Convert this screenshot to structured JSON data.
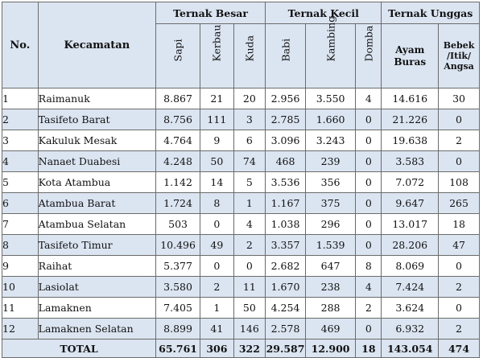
{
  "headers": {
    "no": "No.",
    "kecamatan": "Kecamatan",
    "ternak_besar": "Ternak Besar",
    "ternak_kecil": "Ternak Kecil",
    "ternak_unggas": "Ternak Unggas",
    "sapi": "Sapi",
    "kerbau": "Kerbau",
    "kuda": "Kuda",
    "babi": "Babi",
    "kambing": "Kambing",
    "domba": "Domba",
    "ayam_buras_1": "Ayam",
    "ayam_buras_2": "Buras",
    "bebek_1": "Bebek",
    "bebek_2": "/Itik/",
    "bebek_3": "Angsa"
  },
  "rows": [
    {
      "no": "1",
      "name": "Raimanuk",
      "sapi": "8.867",
      "kerbau": "21",
      "kuda": "20",
      "babi": "2.956",
      "kambing": "3.550",
      "domba": "4",
      "ayam": "14.616",
      "bebek": "30"
    },
    {
      "no": "2",
      "name": "Tasifeto Barat",
      "sapi": "8.756",
      "kerbau": "111",
      "kuda": "3",
      "babi": "2.785",
      "kambing": "1.660",
      "domba": "0",
      "ayam": "21.226",
      "bebek": "0"
    },
    {
      "no": "3",
      "name": "Kakuluk Mesak",
      "sapi": "4.764",
      "kerbau": "9",
      "kuda": "6",
      "babi": "3.096",
      "kambing": "3.243",
      "domba": "0",
      "ayam": "19.638",
      "bebek": "2"
    },
    {
      "no": "4",
      "name": "Nanaet Duabesi",
      "sapi": "4.248",
      "kerbau": "50",
      "kuda": "74",
      "babi": "468",
      "kambing": "239",
      "domba": "0",
      "ayam": "3.583",
      "bebek": "0"
    },
    {
      "no": "5",
      "name": "Kota Atambua",
      "sapi": "1.142",
      "kerbau": "14",
      "kuda": "5",
      "babi": "3.536",
      "kambing": "356",
      "domba": "0",
      "ayam": "7.072",
      "bebek": "108"
    },
    {
      "no": "6",
      "name": "Atambua Barat",
      "sapi": "1.724",
      "kerbau": "8",
      "kuda": "1",
      "babi": "1.167",
      "kambing": "375",
      "domba": "0",
      "ayam": "9.647",
      "bebek": "265"
    },
    {
      "no": "7",
      "name": "Atambua Selatan",
      "sapi": "503",
      "kerbau": "0",
      "kuda": "4",
      "babi": "1.038",
      "kambing": "296",
      "domba": "0",
      "ayam": "13.017",
      "bebek": "18"
    },
    {
      "no": "8",
      "name": "Tasifeto Timur",
      "sapi": "10.496",
      "kerbau": "49",
      "kuda": "2",
      "babi": "3.357",
      "kambing": "1.539",
      "domba": "0",
      "ayam": "28.206",
      "bebek": "47"
    },
    {
      "no": "9",
      "name": "Raihat",
      "sapi": "5.377",
      "kerbau": "0",
      "kuda": "0",
      "babi": "2.682",
      "kambing": "647",
      "domba": "8",
      "ayam": "8.069",
      "bebek": "0"
    },
    {
      "no": "10",
      "name": "Lasiolat",
      "sapi": "3.580",
      "kerbau": "2",
      "kuda": "11",
      "babi": "1.670",
      "kambing": "238",
      "domba": "4",
      "ayam": "7.424",
      "bebek": "2"
    },
    {
      "no": "11",
      "name": "Lamaknen",
      "sapi": "7.405",
      "kerbau": "1",
      "kuda": "50",
      "babi": "4.254",
      "kambing": "288",
      "domba": "2",
      "ayam": "3.624",
      "bebek": "0"
    },
    {
      "no": "12",
      "name": "Lamaknen Selatan",
      "sapi": "8.899",
      "kerbau": "41",
      "kuda": "146",
      "babi": "2.578",
      "kambing": "469",
      "domba": "0",
      "ayam": "6.932",
      "bebek": "2"
    }
  ],
  "total": {
    "label": "TOTAL",
    "sapi": "65.761",
    "kerbau": "306",
    "kuda": "322",
    "babi": "29.587",
    "kambing": "12.900",
    "domba": "18",
    "ayam": "143.054",
    "bebek": "474"
  }
}
